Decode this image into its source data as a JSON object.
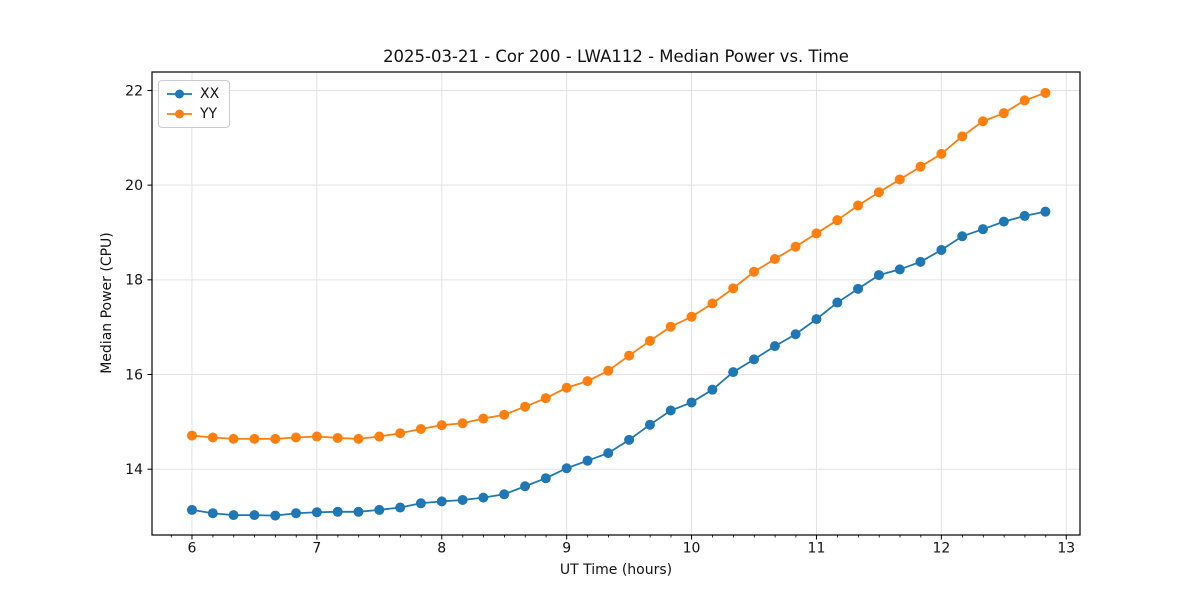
{
  "figure": {
    "title": "2025-03-21 - Cor 200 - LWA112 - Median Power vs. Time"
  },
  "chart_data": {
    "type": "line",
    "title": "2025-03-21 - Cor 200 - LWA112 - Median Power vs. Time",
    "xlabel": "UT Time (hours)",
    "ylabel": "Median Power (CPU)",
    "xlim": [
      5.68,
      13.11
    ],
    "ylim": [
      12.61,
      22.39
    ],
    "x_major_ticks": [
      6,
      7,
      8,
      9,
      10,
      11,
      12,
      13
    ],
    "y_major_ticks": [
      14,
      16,
      18,
      20,
      22
    ],
    "x_minor_step": 0.1667,
    "grid": true,
    "legend_position": "upper-left",
    "x": [
      6.0,
      6.167,
      6.333,
      6.5,
      6.667,
      6.833,
      7.0,
      7.167,
      7.333,
      7.5,
      7.667,
      7.833,
      8.0,
      8.167,
      8.333,
      8.5,
      8.667,
      8.833,
      9.0,
      9.167,
      9.333,
      9.5,
      9.667,
      9.833,
      10.0,
      10.167,
      10.333,
      10.5,
      10.667,
      10.833,
      11.0,
      11.167,
      11.333,
      11.5,
      11.667,
      11.833,
      12.0,
      12.167,
      12.333,
      12.5,
      12.667,
      12.833
    ],
    "series": [
      {
        "name": "XX",
        "color": "#1f77b4",
        "marker": "circle",
        "values": [
          13.14,
          13.07,
          13.03,
          13.03,
          13.02,
          13.07,
          13.09,
          13.1,
          13.1,
          13.14,
          13.19,
          13.28,
          13.32,
          13.35,
          13.4,
          13.47,
          13.64,
          13.81,
          14.02,
          14.18,
          14.34,
          14.62,
          14.94,
          15.24,
          15.41,
          15.68,
          16.05,
          16.32,
          16.6,
          16.85,
          17.17,
          17.52,
          17.81,
          18.1,
          18.22,
          18.38,
          18.63,
          18.92,
          19.07,
          19.23,
          19.35,
          19.44
        ]
      },
      {
        "name": "YY",
        "color": "#ff7f0e",
        "marker": "circle",
        "values": [
          14.71,
          14.67,
          14.64,
          14.64,
          14.64,
          14.67,
          14.69,
          14.66,
          14.64,
          14.69,
          14.76,
          14.85,
          14.93,
          14.97,
          15.07,
          15.15,
          15.32,
          15.5,
          15.72,
          15.86,
          16.08,
          16.4,
          16.71,
          17.01,
          17.22,
          17.5,
          17.82,
          18.17,
          18.44,
          18.7,
          18.98,
          19.26,
          19.57,
          19.85,
          20.12,
          20.39,
          20.66,
          21.03,
          21.35,
          21.52,
          21.79,
          21.95
        ]
      }
    ],
    "styles": {
      "grid_color": "#e3e3e3",
      "spine_color": "#000000",
      "tick_label_color": "#111111",
      "marker_radius": 5,
      "line_width": 1.8
    }
  }
}
